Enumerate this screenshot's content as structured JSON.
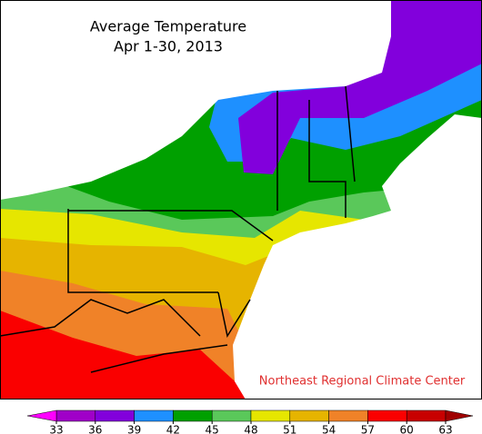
{
  "title": "Average Temperature",
  "subtitle": "Apr 1-30, 2013",
  "credit": "Northeast Regional Climate Center",
  "legend": {
    "ticks": [
      33,
      36,
      39,
      42,
      45,
      48,
      51,
      54,
      57,
      60,
      63
    ],
    "colors": [
      "#ff00ff",
      "#a000c8",
      "#8200dc",
      "#1e90ff",
      "#00a000",
      "#5ac85a",
      "#e6e600",
      "#e6b400",
      "#f08228",
      "#fa0000",
      "#c80000",
      "#a00000"
    ]
  }
}
